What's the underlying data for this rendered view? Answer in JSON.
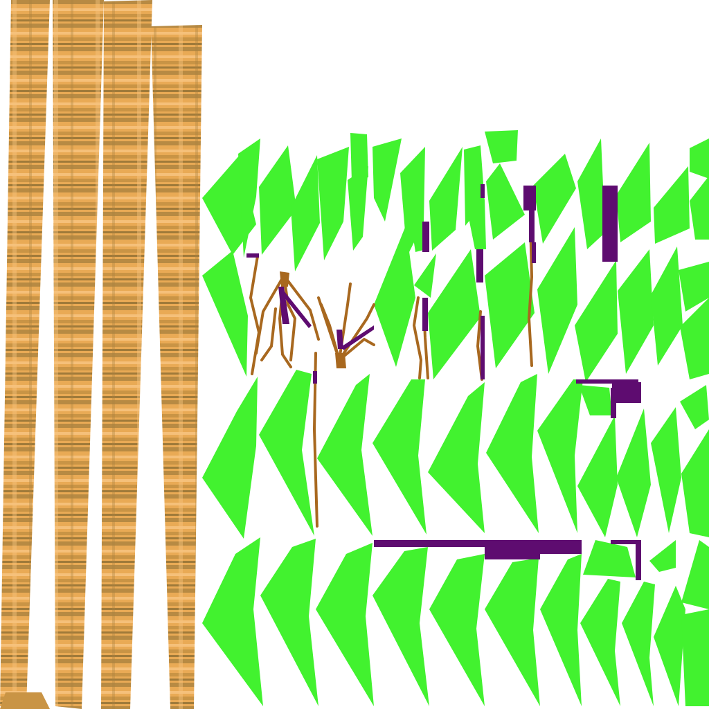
{
  "texture_atlas": {
    "description_visible_text": "",
    "colors": {
      "background": "#ffffff",
      "leaf": "#42f22f",
      "bark_light": "#f0b25e",
      "bark_dark": "#b58a3e",
      "branch": "#a8681f",
      "stem_purple": "#5e0c70"
    },
    "groups": {
      "trunks": [
        "trunk-strip-1",
        "trunk-strip-2",
        "trunk-strip-3",
        "trunk-strip-4"
      ],
      "leaf_rows": [
        "leaf-row-1",
        "leaf-row-2",
        "leaf-row-3",
        "leaf-row-4"
      ],
      "branch_clusters": [
        "branch-cluster-1",
        "branch-cluster-2",
        "branch-cluster-3"
      ],
      "stems": [
        "stem-bar-horizontal",
        "stem-bar-vertical-set"
      ]
    }
  }
}
